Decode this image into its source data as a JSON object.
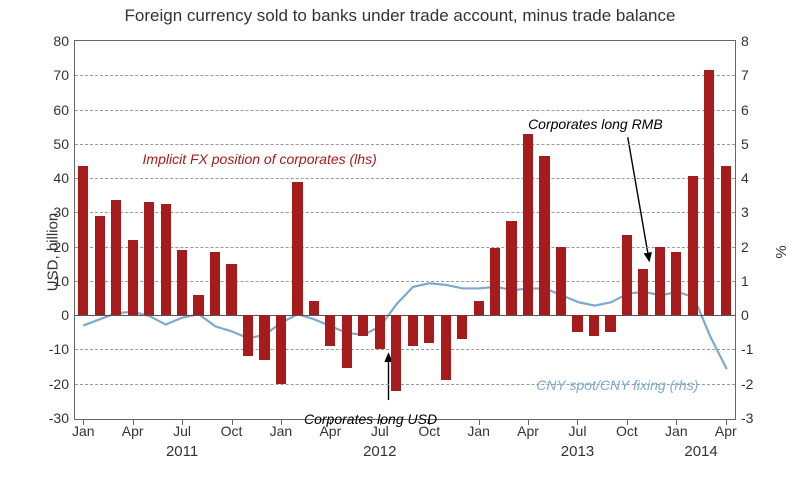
{
  "chart": {
    "type": "bar+line-dual-axis",
    "title": "Foreign currency sold to banks under trade account, minus trade balance",
    "title_fontsize": 17,
    "background_color": "#ffffff",
    "grid_color": "#999999",
    "axis_color": "#666666",
    "text_color": "#333333",
    "left_axis": {
      "label": "USD, billion",
      "min": -30,
      "max": 80,
      "ticks": [
        -30,
        -20,
        -10,
        0,
        10,
        20,
        30,
        40,
        50,
        60,
        70,
        80
      ]
    },
    "right_axis": {
      "label": "%",
      "min": -3,
      "max": 8,
      "ticks": [
        -3,
        -2,
        -1,
        0,
        1,
        2,
        3,
        4,
        5,
        6,
        7,
        8
      ]
    },
    "months": [
      "2011-01",
      "2011-02",
      "2011-03",
      "2011-04",
      "2011-05",
      "2011-06",
      "2011-07",
      "2011-08",
      "2011-09",
      "2011-10",
      "2011-11",
      "2011-12",
      "2012-01",
      "2012-02",
      "2012-03",
      "2012-04",
      "2012-05",
      "2012-06",
      "2012-07",
      "2012-08",
      "2012-09",
      "2012-10",
      "2012-11",
      "2012-12",
      "2013-01",
      "2013-02",
      "2013-03",
      "2013-04",
      "2013-05",
      "2013-06",
      "2013-07",
      "2013-08",
      "2013-09",
      "2013-10",
      "2013-11",
      "2013-12",
      "2014-01",
      "2014-02",
      "2014-03",
      "2014-04"
    ],
    "bars": {
      "label": "Implicit FX position of corporates  (lhs)",
      "color": "#a61b1b",
      "values": [
        43.5,
        29,
        33.5,
        22,
        33,
        32.5,
        19,
        6,
        18.5,
        15,
        -12,
        -13,
        -20,
        39,
        4,
        -9,
        -15.5,
        -6,
        -10,
        -22,
        -9,
        -8,
        -19,
        -7,
        4,
        19.5,
        27.5,
        53,
        46.5,
        20,
        -5,
        -6,
        -5,
        23.5,
        13.5,
        20,
        18.5,
        40.5,
        71.5,
        43.5
      ],
      "bar_width_ratio": 0.62
    },
    "line": {
      "label": "CNY spot/CNY fixing (rhs)",
      "color": "#7da9cf",
      "width": 2.2,
      "values": [
        -0.28,
        -0.1,
        0.08,
        0.12,
        0.0,
        -0.25,
        -0.05,
        0.05,
        -0.3,
        -0.45,
        -0.65,
        -0.55,
        -0.2,
        0.05,
        -0.1,
        -0.3,
        -0.5,
        -0.55,
        -0.3,
        0.35,
        0.85,
        0.95,
        0.9,
        0.8,
        0.8,
        0.85,
        0.75,
        0.8,
        0.8,
        0.6,
        0.4,
        0.3,
        0.4,
        0.65,
        0.7,
        0.6,
        0.7,
        0.55,
        -0.6,
        -1.55
      ]
    },
    "x_month_labels": [
      {
        "idx": 0,
        "label": "Jan"
      },
      {
        "idx": 3,
        "label": "Apr"
      },
      {
        "idx": 6,
        "label": "Jul"
      },
      {
        "idx": 9,
        "label": "Oct"
      },
      {
        "idx": 12,
        "label": "Jan"
      },
      {
        "idx": 15,
        "label": "Apr"
      },
      {
        "idx": 18,
        "label": "Jul"
      },
      {
        "idx": 21,
        "label": "Oct"
      },
      {
        "idx": 24,
        "label": "Jan"
      },
      {
        "idx": 27,
        "label": "Apr"
      },
      {
        "idx": 30,
        "label": "Jul"
      },
      {
        "idx": 33,
        "label": "Oct"
      },
      {
        "idx": 36,
        "label": "Jan"
      },
      {
        "idx": 39,
        "label": "Apr"
      }
    ],
    "x_year_labels": [
      {
        "center_idx": 6,
        "label": "2011"
      },
      {
        "center_idx": 18,
        "label": "2012"
      },
      {
        "center_idx": 30,
        "label": "2013"
      },
      {
        "center_idx": 37.5,
        "label": "2014"
      }
    ],
    "annotations": {
      "bars_label": {
        "text": "Implicit FX position of corporates  (lhs)",
        "color": "#a61b1b",
        "x_idx": 3.6,
        "y_val": 48
      },
      "line_label": {
        "text": "CNY spot/CNY fixing (rhs)",
        "color": "#7da9cf",
        "x_idx": 27.5,
        "y_val": -18
      },
      "long_usd": {
        "text": "Corporates long USD",
        "color": "#000000",
        "x_idx": 13.4,
        "y_val": -28,
        "arrow_to_idx": 18.5,
        "arrow_to_val": -11
      },
      "long_rmb": {
        "text": "Corporates long RMB",
        "color": "#000000",
        "x_idx": 27,
        "y_val": 58,
        "arrow_to_idx": 34.3,
        "arrow_to_val": 16
      }
    }
  }
}
